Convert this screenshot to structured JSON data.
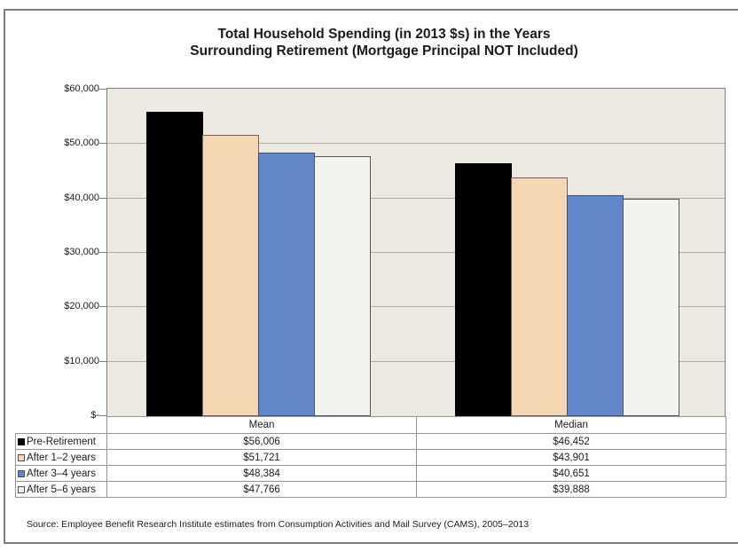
{
  "chart": {
    "title_line1": "Total Household Spending (in 2013 $s) in the Years",
    "title_line2": "Surrounding Retirement (Mortgage Principal NOT Included)",
    "y_ticks": [
      "$60,000",
      "$50,000",
      "$40,000",
      "$30,000",
      "$20,000",
      "$10,000",
      "$-"
    ],
    "source": "Source: Employee Benefit Research Institute estimates from Consumption Activities and Mail Survey (CAMS), 2005–2013"
  },
  "chart_data": {
    "type": "bar",
    "title": "Total Household Spending (in 2013 $s) in the Years Surrounding Retirement (Mortgage Principal NOT Included)",
    "categories": [
      "Mean",
      "Median"
    ],
    "series": [
      {
        "name": "Pre-Retirement",
        "values": [
          56006,
          46452
        ],
        "labels": [
          "$56,006",
          "$46,452"
        ],
        "color": "#000000",
        "border_color": "#000000"
      },
      {
        "name": "After 1–2 years",
        "values": [
          51721,
          43901
        ],
        "labels": [
          "$51,721",
          "$43,901"
        ],
        "color": "#f4d6b3",
        "border_color": "#6f675e"
      },
      {
        "name": "After 3–4 years",
        "values": [
          48384,
          40651
        ],
        "labels": [
          "$48,384",
          "$40,651"
        ],
        "color": "#6287c9",
        "border_color": "#3a4f79"
      },
      {
        "name": "After 5–6 years",
        "values": [
          47766,
          39888
        ],
        "labels": [
          "$47,766",
          "$39,888"
        ],
        "color": "#f2f2ef",
        "border_color": "#58585a"
      }
    ],
    "xlabel": "",
    "ylabel": "",
    "ylim": [
      0,
      60000
    ],
    "y_tick_step": 10000,
    "grid": true,
    "legend_position": "table-left",
    "plot_background": "#ece9e2",
    "gridline_color": "#aeaca6"
  }
}
